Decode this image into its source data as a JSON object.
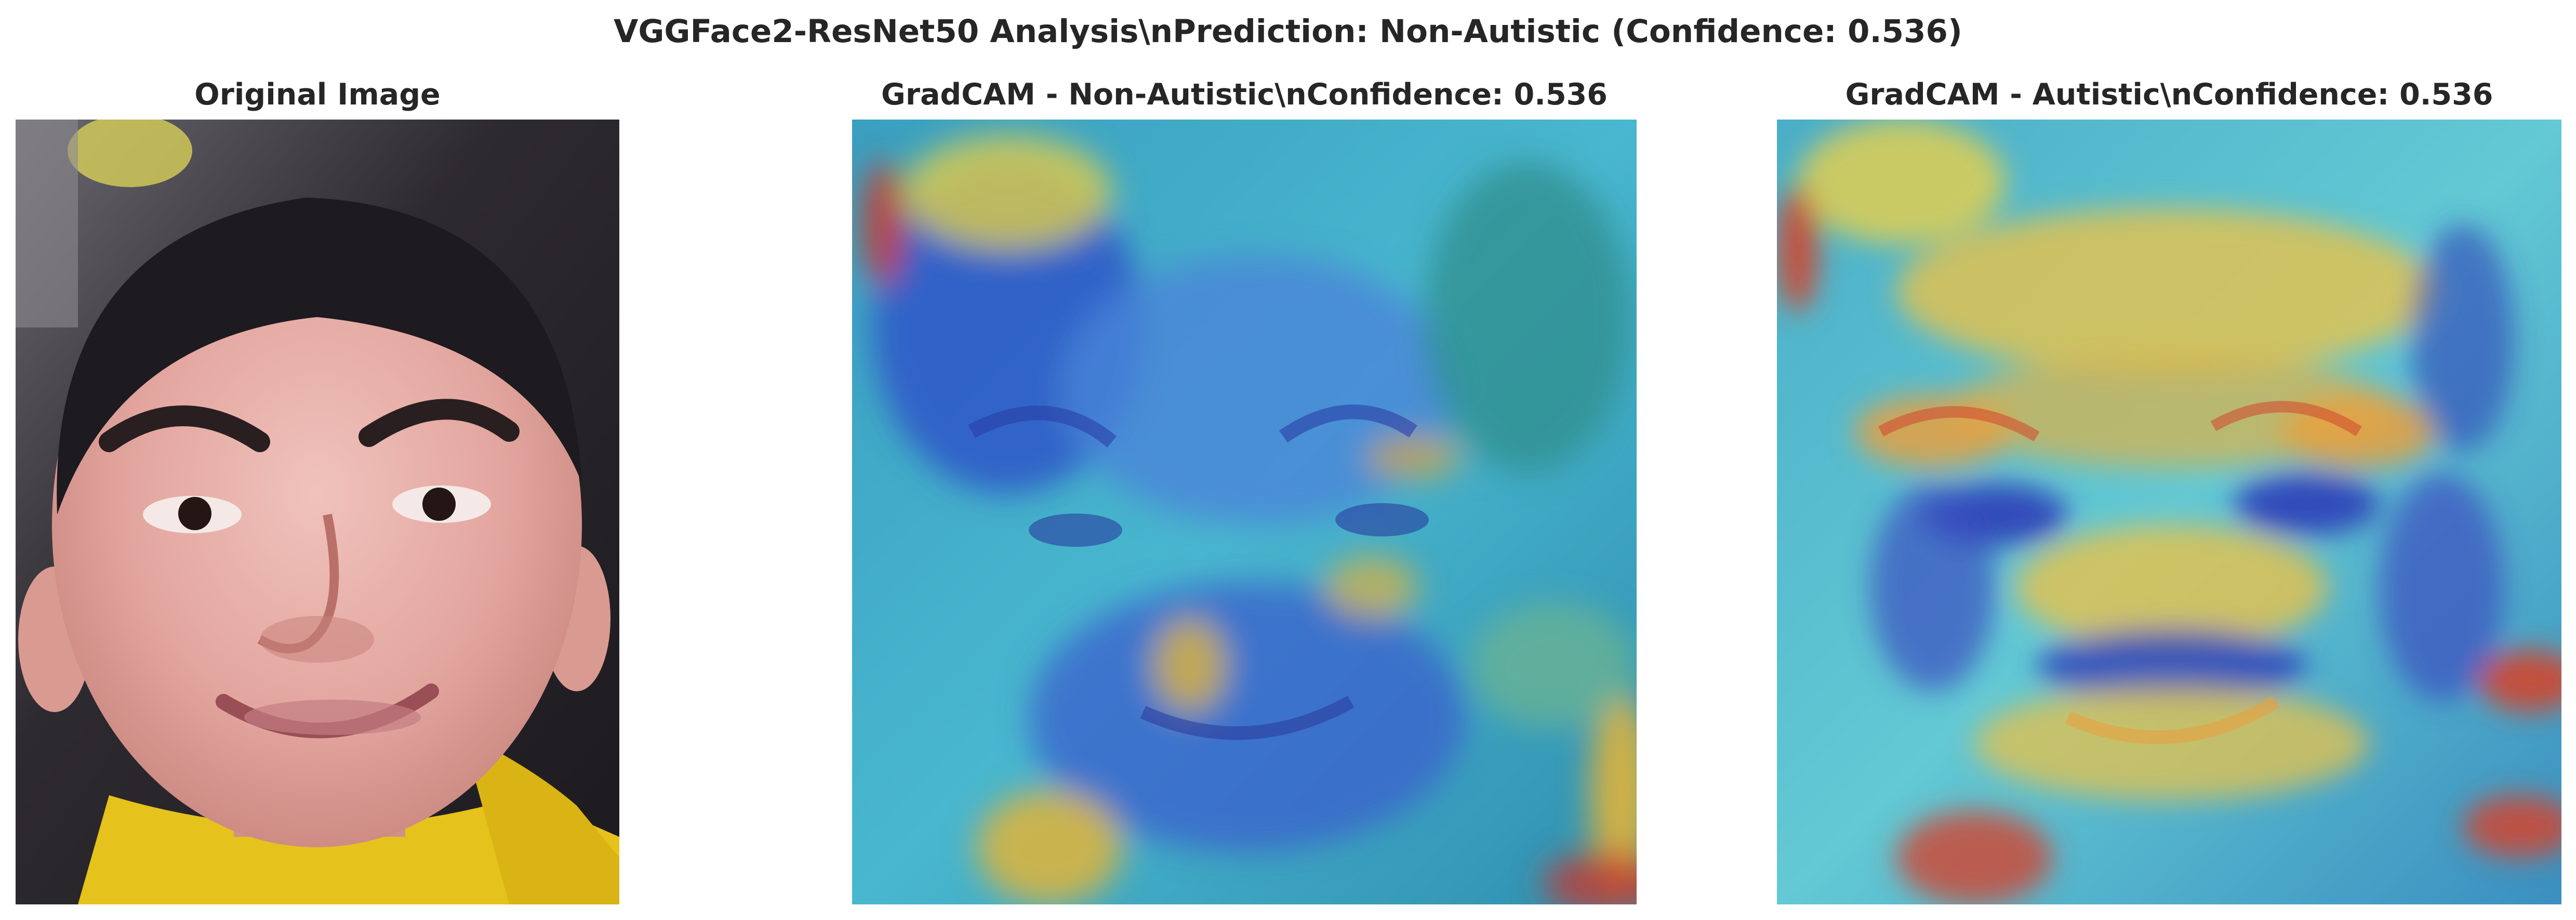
{
  "figure": {
    "suptitle": "VGGFace2-ResNet50 Analysis\\nPrediction: Non-Autistic (Confidence: 0.536)"
  },
  "panels": [
    {
      "title": "Original Image",
      "content": "child-face-photo",
      "colors": {
        "skin": "#e4aaa3",
        "hair": "#1d1a20",
        "shirt": "#e6c21c",
        "background": "#2d2a30"
      }
    },
    {
      "title": "GradCAM - Non-Autistic\\nConfidence: 0.536",
      "content": "gradcam-heatmap-overlay",
      "colors": {
        "cool": "#2d56c8",
        "mid": "#52c7d8",
        "warm": "#e1b43a",
        "hot": "#c63a2e"
      }
    },
    {
      "title": "GradCAM - Autistic\\nConfidence: 0.536",
      "content": "gradcam-heatmap-overlay",
      "colors": {
        "cool": "#2d3fb8",
        "mid": "#63c9d4",
        "warm": "#e8c24a",
        "hot": "#d2452e"
      }
    }
  ]
}
